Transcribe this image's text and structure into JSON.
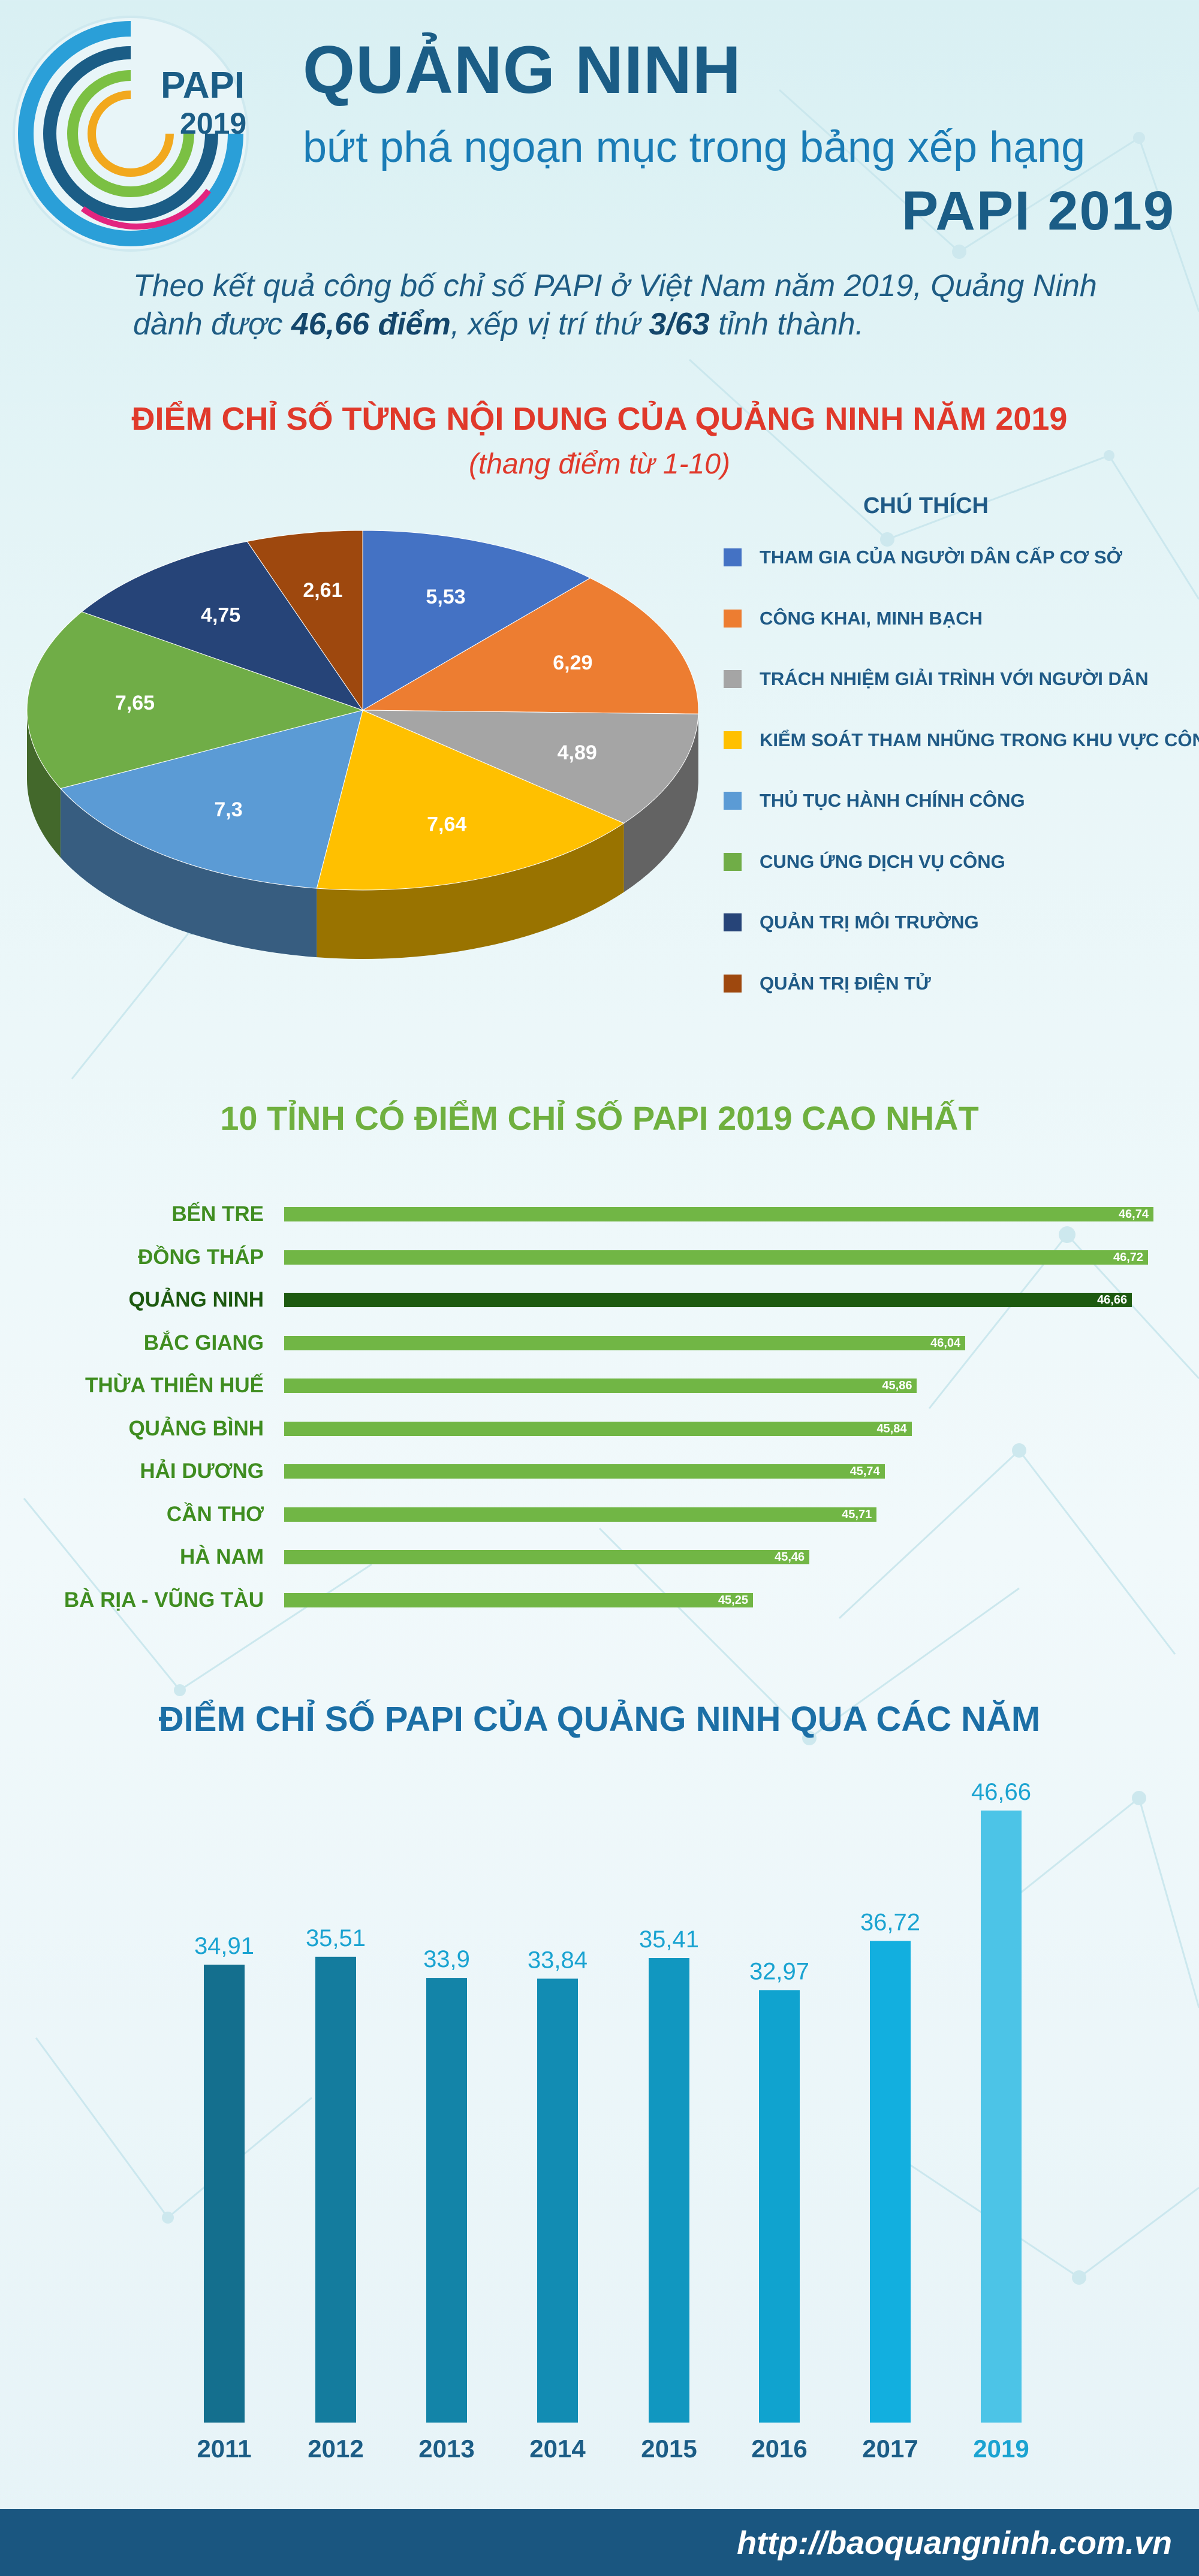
{
  "header": {
    "logo_text": "PAPI",
    "logo_year": "2019",
    "title": "QUẢNG NINH",
    "subtitle": "bứt phá ngoạn mục trong bảng xếp hạng",
    "title_papi": "PAPI 2019"
  },
  "intro": {
    "line1": "Theo kết quả công bố chỉ số PAPI ở Việt Nam năm 2019, Quảng Ninh",
    "line2_pre": "dành được ",
    "score": "46,66 điểm",
    "line2_mid": ", xếp vị trí thứ ",
    "rank": "3/63",
    "line2_post": " tỉnh thành."
  },
  "colors": {
    "title_dark_blue": "#1b5d86",
    "accent_red": "#e0392b",
    "accent_green": "#6fb03f",
    "highlight_green": "#1d5a10",
    "footer_blue": "#1a5680"
  },
  "chart_data": [
    {
      "type": "pie",
      "title": "ĐIỂM CHỈ SỐ TỪNG NỘI DUNG CỦA QUẢNG NINH NĂM 2019",
      "subtitle": "(thang điểm từ 1-10)",
      "legend_title": "CHÚ THÍCH",
      "legend_position": "right",
      "slices": [
        {
          "name": "THAM GIA CỦA NGƯỜI DÂN CẤP CƠ SỞ",
          "value": 5.53,
          "label": "5,53",
          "color": "#4472c4"
        },
        {
          "name": "CÔNG KHAI, MINH BẠCH",
          "value": 6.29,
          "label": "6,29",
          "color": "#ed7d31"
        },
        {
          "name": "TRÁCH NHIỆM GIẢI TRÌNH VỚI NGƯỜI DÂN",
          "value": 4.89,
          "label": "4,89",
          "color": "#a5a5a5"
        },
        {
          "name": "KIỂM SOÁT THAM NHŨNG TRONG KHU VỰC CÔNG",
          "value": 7.64,
          "label": "7,64",
          "color": "#ffc000"
        },
        {
          "name": "THỦ TỤC HÀNH CHÍNH CÔNG",
          "value": 7.3,
          "label": "7,3",
          "color": "#5b9bd5"
        },
        {
          "name": "CUNG ỨNG DỊCH VỤ CÔNG",
          "value": 7.65,
          "label": "7,65",
          "color": "#70ad47"
        },
        {
          "name": "QUẢN TRỊ MÔI TRƯỜNG",
          "value": 4.75,
          "label": "4,75",
          "color": "#264478"
        },
        {
          "name": "QUẢN TRỊ ĐIỆN TỬ",
          "value": 2.61,
          "label": "2,61",
          "color": "#9e480e"
        }
      ]
    },
    {
      "type": "bar",
      "orientation": "horizontal",
      "title": "10 TỈNH CÓ ĐIỂM CHỈ SỐ PAPI 2019 CAO NHẤT",
      "highlight": "QUẢNG NINH",
      "categories": [
        "BẾN TRE",
        "ĐỒNG THÁP",
        "QUẢNG NINH",
        "BẮC GIANG",
        "THỪA THIÊN HUẾ",
        "QUẢNG BÌNH",
        "HẢI DƯƠNG",
        "CẦN THƠ",
        "HÀ NAM",
        "BÀ RỊA - VŨNG TÀU"
      ],
      "values": [
        46.74,
        46.72,
        46.66,
        46.04,
        45.86,
        45.84,
        45.74,
        45.71,
        45.46,
        45.25
      ],
      "labels": [
        "46,74",
        "46,72",
        "46,66",
        "46,04",
        "45,86",
        "45,84",
        "45,74",
        "45,71",
        "45,46",
        "45,25"
      ]
    },
    {
      "type": "bar",
      "orientation": "vertical",
      "title": "ĐIỂM CHỈ SỐ PAPI CỦA QUẢNG NINH QUA CÁC NĂM",
      "categories": [
        "2011",
        "2012",
        "2013",
        "2014",
        "2015",
        "2016",
        "2017",
        "2019"
      ],
      "values": [
        34.91,
        35.51,
        33.9,
        33.84,
        35.41,
        32.97,
        36.72,
        46.66
      ],
      "labels": [
        "34,91",
        "35,51",
        "33,9",
        "33,84",
        "35,41",
        "32,97",
        "36,72",
        "46,66"
      ],
      "colors": [
        "#146f8e",
        "#147c9e",
        "#1384a8",
        "#128cb3",
        "#1197c0",
        "#10a3cf",
        "#12afdf",
        "#4cc4e7"
      ]
    }
  ],
  "footer": {
    "url": "http://baoquangninh.com.vn"
  }
}
